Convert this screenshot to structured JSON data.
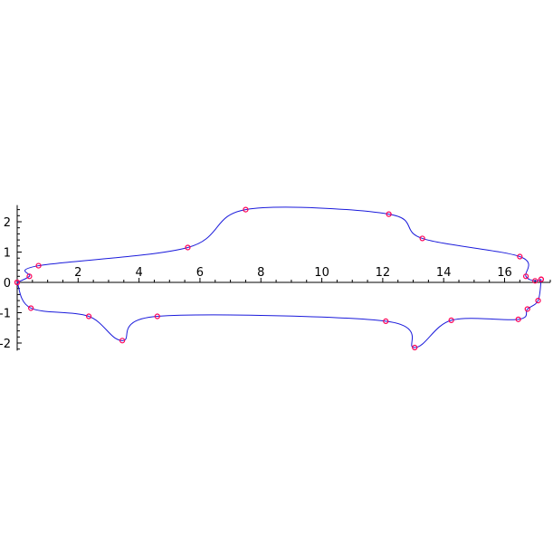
{
  "chart_data": {
    "type": "line",
    "title": "",
    "xlabel": "",
    "ylabel": "",
    "xlim": [
      0,
      17.5
    ],
    "ylim": [
      -2.25,
      2.55
    ],
    "grid": false,
    "legend": "none",
    "x_ticks": [
      {
        "value": 2,
        "label": "2"
      },
      {
        "value": 4,
        "label": "4"
      },
      {
        "value": 6,
        "label": "6"
      },
      {
        "value": 8,
        "label": "8"
      },
      {
        "value": 10,
        "label": "10"
      },
      {
        "value": 12,
        "label": "12"
      },
      {
        "value": 14,
        "label": "14"
      },
      {
        "value": 16,
        "label": "16"
      }
    ],
    "y_ticks": [
      {
        "value": 2,
        "label": "2"
      },
      {
        "value": 1,
        "label": "1"
      },
      {
        "value": 0,
        "label": "0"
      },
      {
        "value": -1,
        "label": "-1"
      },
      {
        "value": -2,
        "label": "-2"
      }
    ],
    "colors": {
      "curve": "#1a1adb",
      "marker": "#ff0055",
      "axis": "#000000"
    },
    "series": [
      {
        "marker": "circle",
        "points": [
          [
            0,
            0
          ],
          [
            0.4,
            0.2
          ],
          [
            0.7,
            0.55
          ],
          [
            5.6,
            1.15
          ],
          [
            7.5,
            2.4
          ],
          [
            12.2,
            2.25
          ],
          [
            13.3,
            1.45
          ],
          [
            16.5,
            0.85
          ],
          [
            16.7,
            0.2
          ],
          [
            17.0,
            0.05
          ],
          [
            17.2,
            0.1
          ]
        ]
      },
      {
        "marker": "circle",
        "points": [
          [
            0,
            0
          ],
          [
            0.45,
            -0.85
          ],
          [
            2.35,
            -1.12
          ],
          [
            3.45,
            -1.92
          ],
          [
            4.6,
            -1.12
          ],
          [
            12.1,
            -1.28
          ],
          [
            13.05,
            -2.15
          ],
          [
            14.25,
            -1.25
          ],
          [
            16.45,
            -1.22
          ],
          [
            16.75,
            -0.88
          ],
          [
            17.1,
            -0.6
          ],
          [
            17.2,
            0.1
          ]
        ]
      }
    ]
  }
}
